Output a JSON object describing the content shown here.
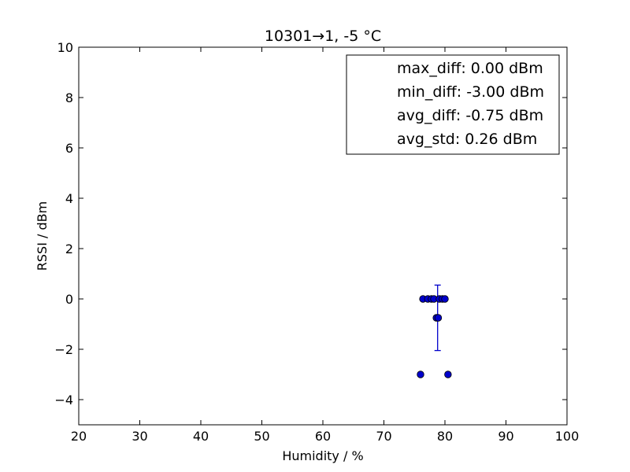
{
  "chart_data": {
    "type": "scatter",
    "title": "10301→1, -5 °C",
    "xlabel": "Humidity / %",
    "ylabel": "RSSI / dBm",
    "xlim": [
      20,
      100
    ],
    "ylim": [
      -5,
      10
    ],
    "xticks": [
      20,
      30,
      40,
      50,
      60,
      70,
      80,
      90,
      100
    ],
    "yticks": [
      -4,
      -2,
      0,
      2,
      4,
      6,
      8,
      10
    ],
    "xtick_labels": [
      "20",
      "30",
      "40",
      "50",
      "60",
      "70",
      "80",
      "90",
      "100"
    ],
    "ytick_labels": [
      "−4",
      "−2",
      "0",
      "2",
      "4",
      "6",
      "8",
      "10"
    ],
    "grid": false,
    "legend_position": "top-right",
    "legend_entries": [
      "max_diff: 0.00 dBm",
      "min_diff: -3.00 dBm",
      "avg_diff: -0.75 dBm",
      "avg_std: 0.26 dBm"
    ],
    "series": [
      {
        "marker_color": "#0000cc",
        "points": [
          {
            "x": 76.0,
            "y": -3.0
          },
          {
            "x": 76.4,
            "y": 0.0
          },
          {
            "x": 77.2,
            "y": 0.0
          },
          {
            "x": 77.8,
            "y": 0.0
          },
          {
            "x": 78.2,
            "y": 0.0
          },
          {
            "x": 78.6,
            "y": -0.75
          },
          {
            "x": 78.9,
            "y": -0.75
          },
          {
            "x": 79.1,
            "y": 0.0
          },
          {
            "x": 79.6,
            "y": 0.0
          },
          {
            "x": 80.0,
            "y": 0.0
          },
          {
            "x": 80.5,
            "y": -3.0
          }
        ]
      }
    ],
    "errorbar": {
      "x": 78.8,
      "y": -0.75,
      "upper": 0.55,
      "lower": -2.05,
      "color": "#0000cc"
    }
  }
}
